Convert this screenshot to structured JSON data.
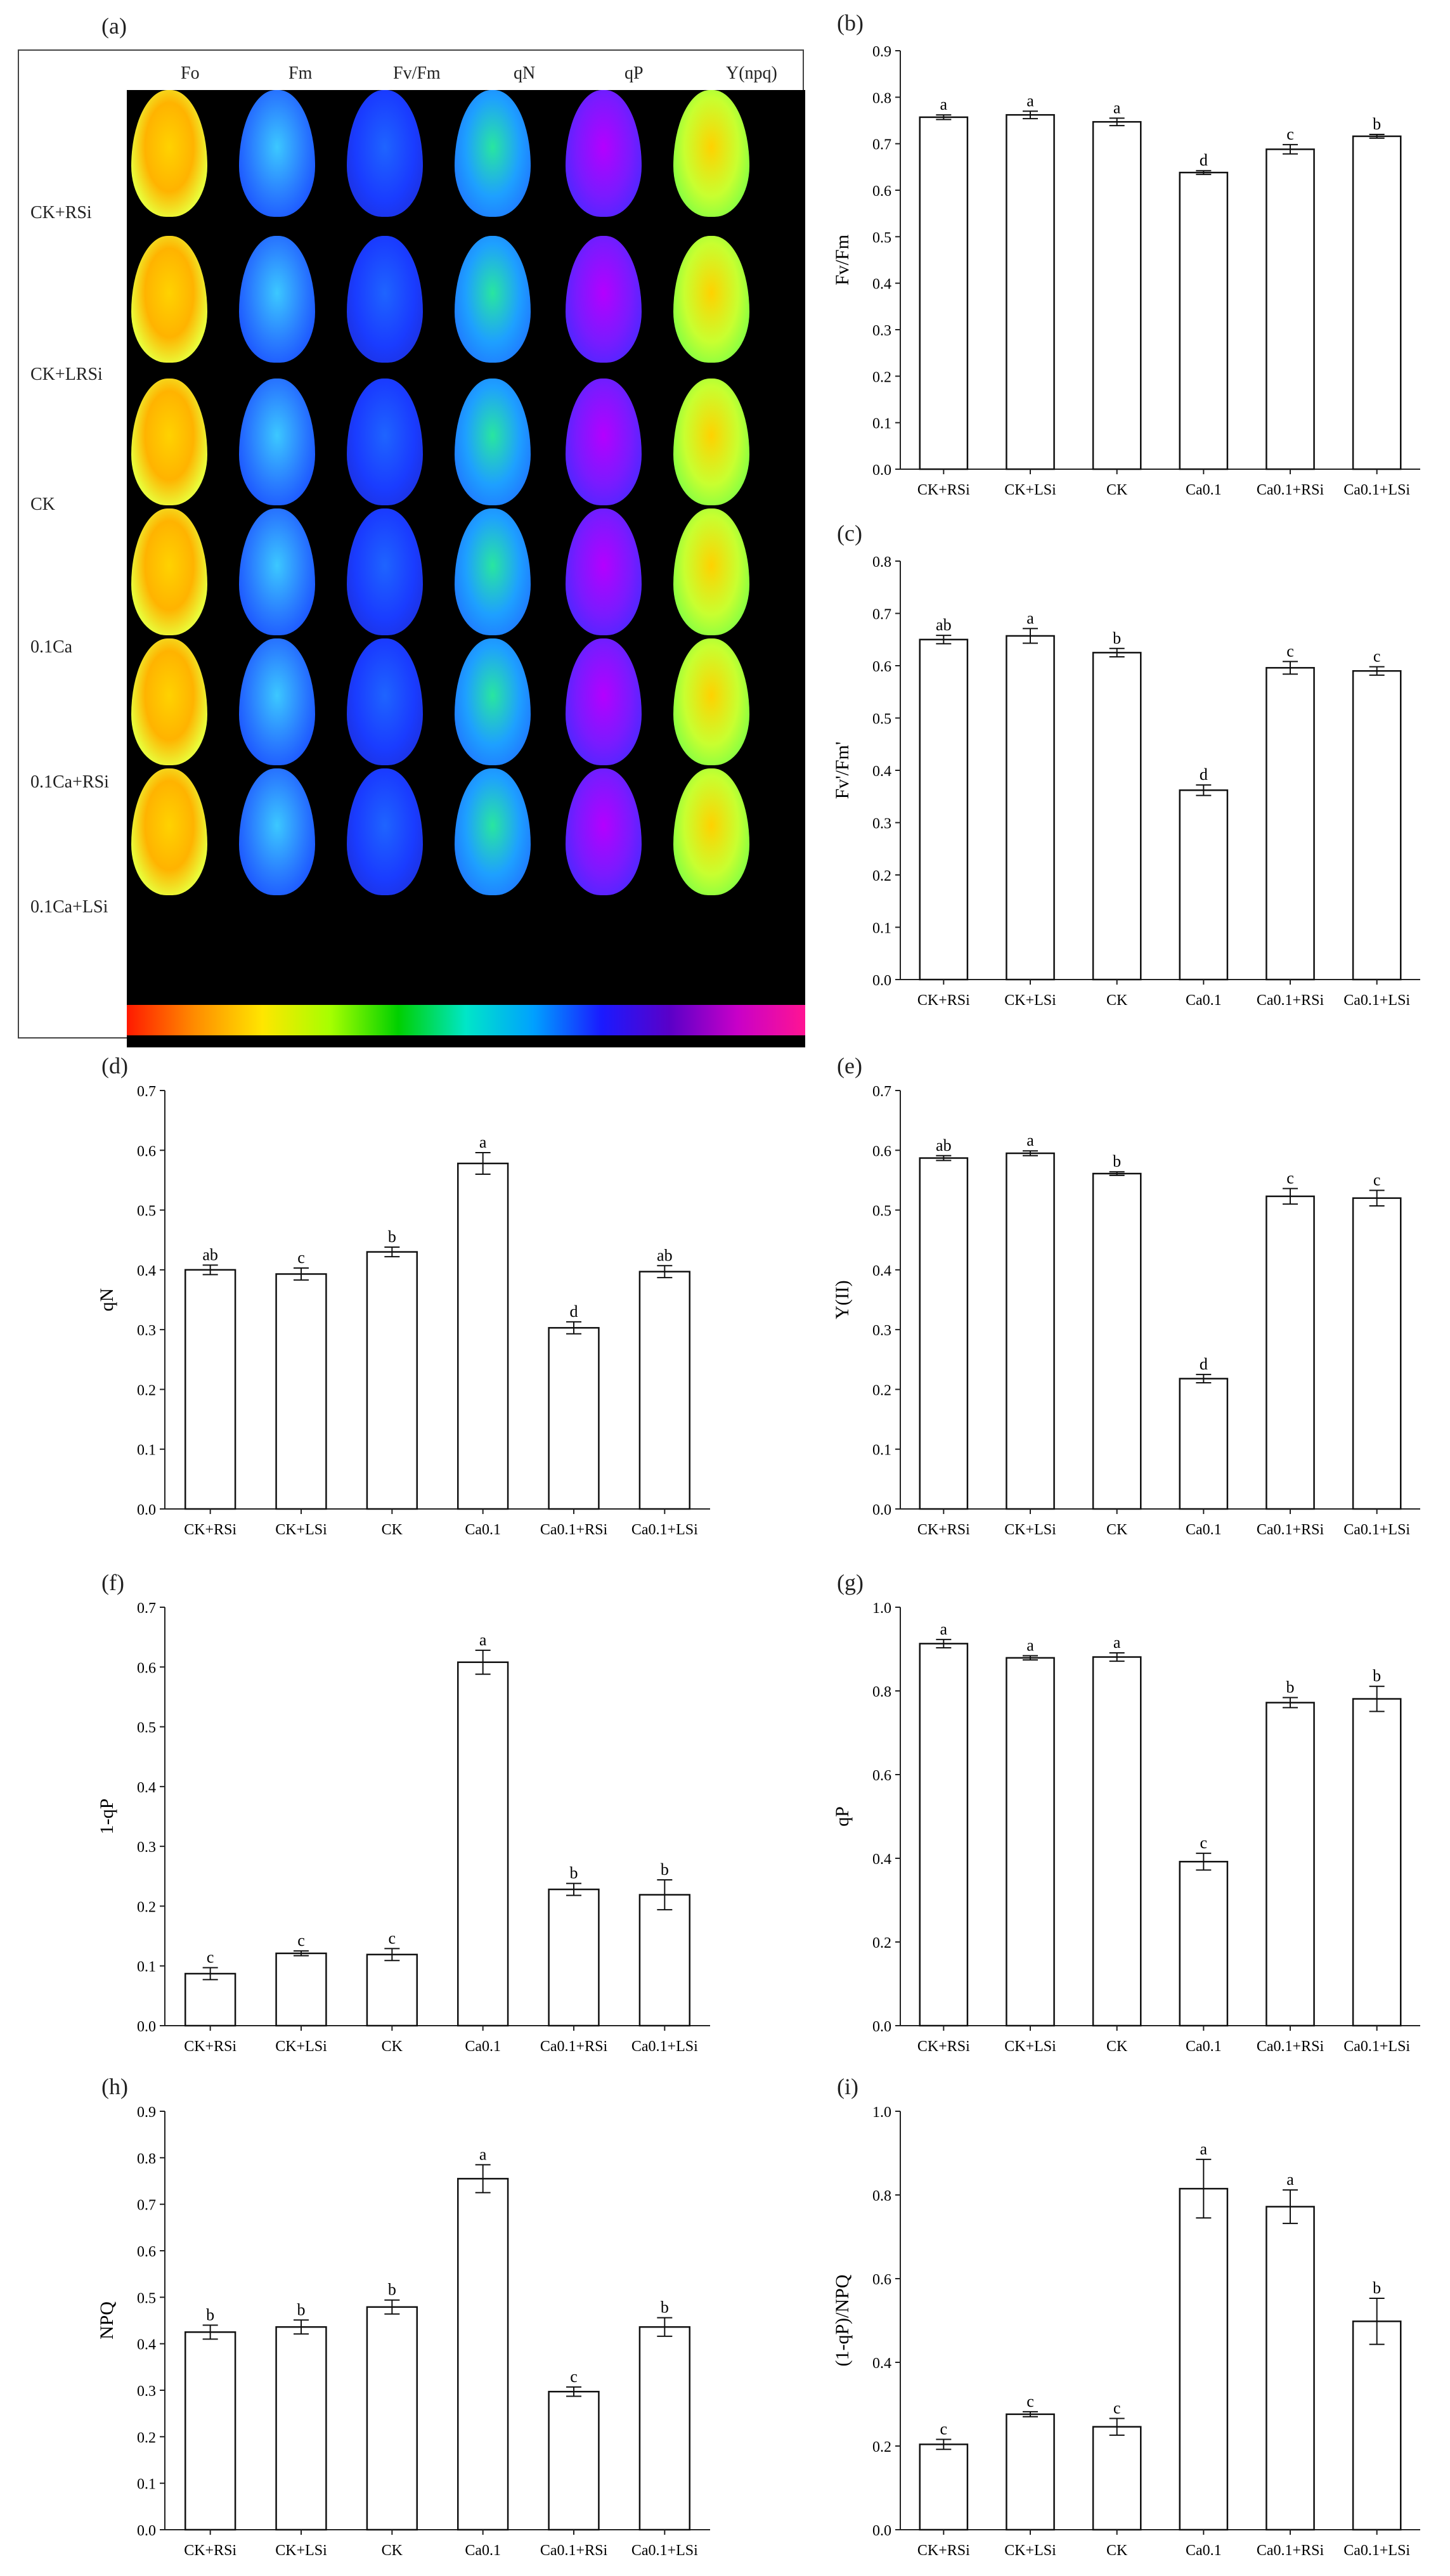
{
  "figure": {
    "heatmap": {
      "panel_label": "(a)",
      "parameters": [
        "Fo",
        "Fm",
        "Fv/Fm",
        "qN",
        "qP",
        "Y(npq)"
      ],
      "treatments": [
        "CK+RSi",
        "CK+LRSi",
        "CK",
        "0.1Ca",
        "0.1Ca+RSi",
        "0.1Ca+LSi"
      ],
      "colorbar": "rainbow"
    }
  },
  "chart_data": [
    {
      "panel_label": "(b)",
      "type": "bar",
      "categories": [
        "CK+RSi",
        "CK+LSi",
        "CK",
        "Ca0.1",
        "Ca0.1+RSi",
        "Ca0.1+LSi"
      ],
      "values": [
        0.757,
        0.762,
        0.747,
        0.638,
        0.688,
        0.716
      ],
      "errors": [
        0.005,
        0.008,
        0.008,
        0.004,
        0.01,
        0.004
      ],
      "letters": [
        "a",
        "a",
        "a",
        "d",
        "c",
        "b"
      ],
      "ylabel": "Fv/Fm",
      "xlabel": "",
      "ylim": [
        0,
        0.9
      ],
      "yticks": [
        "0.0",
        "0.1",
        "0.2",
        "0.3",
        "0.4",
        "0.5",
        "0.6",
        "0.7",
        "0.8",
        "0.9"
      ],
      "grid": false
    },
    {
      "panel_label": "(c)",
      "type": "bar",
      "categories": [
        "CK+RSi",
        "CK+LSi",
        "CK",
        "Ca0.1",
        "Ca0.1+RSi",
        "Ca0.1+LSi"
      ],
      "values": [
        0.65,
        0.657,
        0.625,
        0.362,
        0.596,
        0.59
      ],
      "errors": [
        0.008,
        0.014,
        0.008,
        0.01,
        0.012,
        0.008
      ],
      "letters": [
        "ab",
        "a",
        "b",
        "d",
        "c",
        "c"
      ],
      "ylabel": "Fv'/Fm'",
      "xlabel": "",
      "ylim": [
        0,
        0.8
      ],
      "yticks": [
        "0.0",
        "0.1",
        "0.2",
        "0.3",
        "0.4",
        "0.5",
        "0.6",
        "0.7",
        "0.8"
      ],
      "grid": false
    },
    {
      "panel_label": "(d)",
      "type": "bar",
      "categories": [
        "CK+RSi",
        "CK+LSi",
        "CK",
        "Ca0.1",
        "Ca0.1+RSi",
        "Ca0.1+LSi"
      ],
      "values": [
        0.4,
        0.393,
        0.43,
        0.578,
        0.303,
        0.397
      ],
      "errors": [
        0.008,
        0.01,
        0.008,
        0.018,
        0.01,
        0.01
      ],
      "letters": [
        "ab",
        "c",
        "b",
        "a",
        "d",
        "ab"
      ],
      "ylabel": "qN",
      "xlabel": "",
      "ylim": [
        0,
        0.7
      ],
      "yticks": [
        "0.0",
        "0.1",
        "0.2",
        "0.3",
        "0.4",
        "0.5",
        "0.6",
        "0.7"
      ],
      "grid": false
    },
    {
      "panel_label": "(e)",
      "type": "bar",
      "categories": [
        "CK+RSi",
        "CK+LSi",
        "CK",
        "Ca0.1",
        "Ca0.1+RSi",
        "Ca0.1+LSi"
      ],
      "values": [
        0.587,
        0.595,
        0.561,
        0.218,
        0.523,
        0.52
      ],
      "errors": [
        0.004,
        0.004,
        0.003,
        0.007,
        0.013,
        0.013
      ],
      "letters": [
        "ab",
        "a",
        "b",
        "d",
        "c",
        "c"
      ],
      "ylabel": "Y(II)",
      "xlabel": "",
      "ylim": [
        0,
        0.7
      ],
      "yticks": [
        "0.0",
        "0.1",
        "0.2",
        "0.3",
        "0.4",
        "0.5",
        "0.6",
        "0.7"
      ],
      "grid": false
    },
    {
      "panel_label": "(f)",
      "type": "bar",
      "categories": [
        "CK+RSi",
        "CK+LSi",
        "CK",
        "Ca0.1",
        "Ca0.1+RSi",
        "Ca0.1+LSi"
      ],
      "values": [
        0.087,
        0.121,
        0.119,
        0.608,
        0.228,
        0.219
      ],
      "errors": [
        0.01,
        0.004,
        0.01,
        0.02,
        0.01,
        0.025
      ],
      "letters": [
        "c",
        "c",
        "c",
        "a",
        "b",
        "b"
      ],
      "ylabel": "1-qP",
      "xlabel": "",
      "ylim": [
        0,
        0.7
      ],
      "yticks": [
        "0.0",
        "0.1",
        "0.2",
        "0.3",
        "0.4",
        "0.5",
        "0.6",
        "0.7"
      ],
      "grid": false
    },
    {
      "panel_label": "(g)",
      "type": "bar",
      "categories": [
        "CK+RSi",
        "CK+LSi",
        "CK",
        "Ca0.1",
        "Ca0.1+RSi",
        "Ca0.1+LSi"
      ],
      "values": [
        0.913,
        0.879,
        0.881,
        0.392,
        0.772,
        0.781
      ],
      "errors": [
        0.01,
        0.005,
        0.01,
        0.02,
        0.012,
        0.03
      ],
      "letters": [
        "a",
        "a",
        "a",
        "c",
        "b",
        "b"
      ],
      "ylabel": "qP",
      "xlabel": "",
      "ylim": [
        0,
        1.0
      ],
      "yticks": [
        "0.0",
        "0.2",
        "0.4",
        "0.6",
        "0.8",
        "1.0"
      ],
      "grid": false
    },
    {
      "panel_label": "(h)",
      "type": "bar",
      "categories": [
        "CK+RSi",
        "CK+LSi",
        "CK",
        "Ca0.1",
        "Ca0.1+RSi",
        "Ca0.1+LSi"
      ],
      "values": [
        0.425,
        0.436,
        0.479,
        0.755,
        0.297,
        0.436
      ],
      "errors": [
        0.015,
        0.015,
        0.015,
        0.03,
        0.01,
        0.02
      ],
      "letters": [
        "b",
        "b",
        "b",
        "a",
        "c",
        "b"
      ],
      "ylabel": "NPQ",
      "xlabel": "",
      "ylim": [
        0,
        0.9
      ],
      "yticks": [
        "0.0",
        "0.1",
        "0.2",
        "0.3",
        "0.4",
        "0.5",
        "0.6",
        "0.7",
        "0.8",
        "0.9"
      ],
      "grid": false
    },
    {
      "panel_label": "(i)",
      "type": "bar",
      "categories": [
        "CK+RSi",
        "CK+LSi",
        "CK",
        "Ca0.1",
        "Ca0.1+RSi",
        "Ca0.1+LSi"
      ],
      "values": [
        0.204,
        0.276,
        0.246,
        0.815,
        0.772,
        0.498
      ],
      "errors": [
        0.012,
        0.006,
        0.02,
        0.07,
        0.04,
        0.055
      ],
      "letters": [
        "c",
        "c",
        "c",
        "a",
        "a",
        "b"
      ],
      "ylabel": "(1-qP)/NPQ",
      "xlabel": "",
      "ylim": [
        0,
        1.0
      ],
      "yticks": [
        "0.0",
        "0.2",
        "0.4",
        "0.6",
        "0.8",
        "1.0"
      ],
      "grid": false
    }
  ]
}
